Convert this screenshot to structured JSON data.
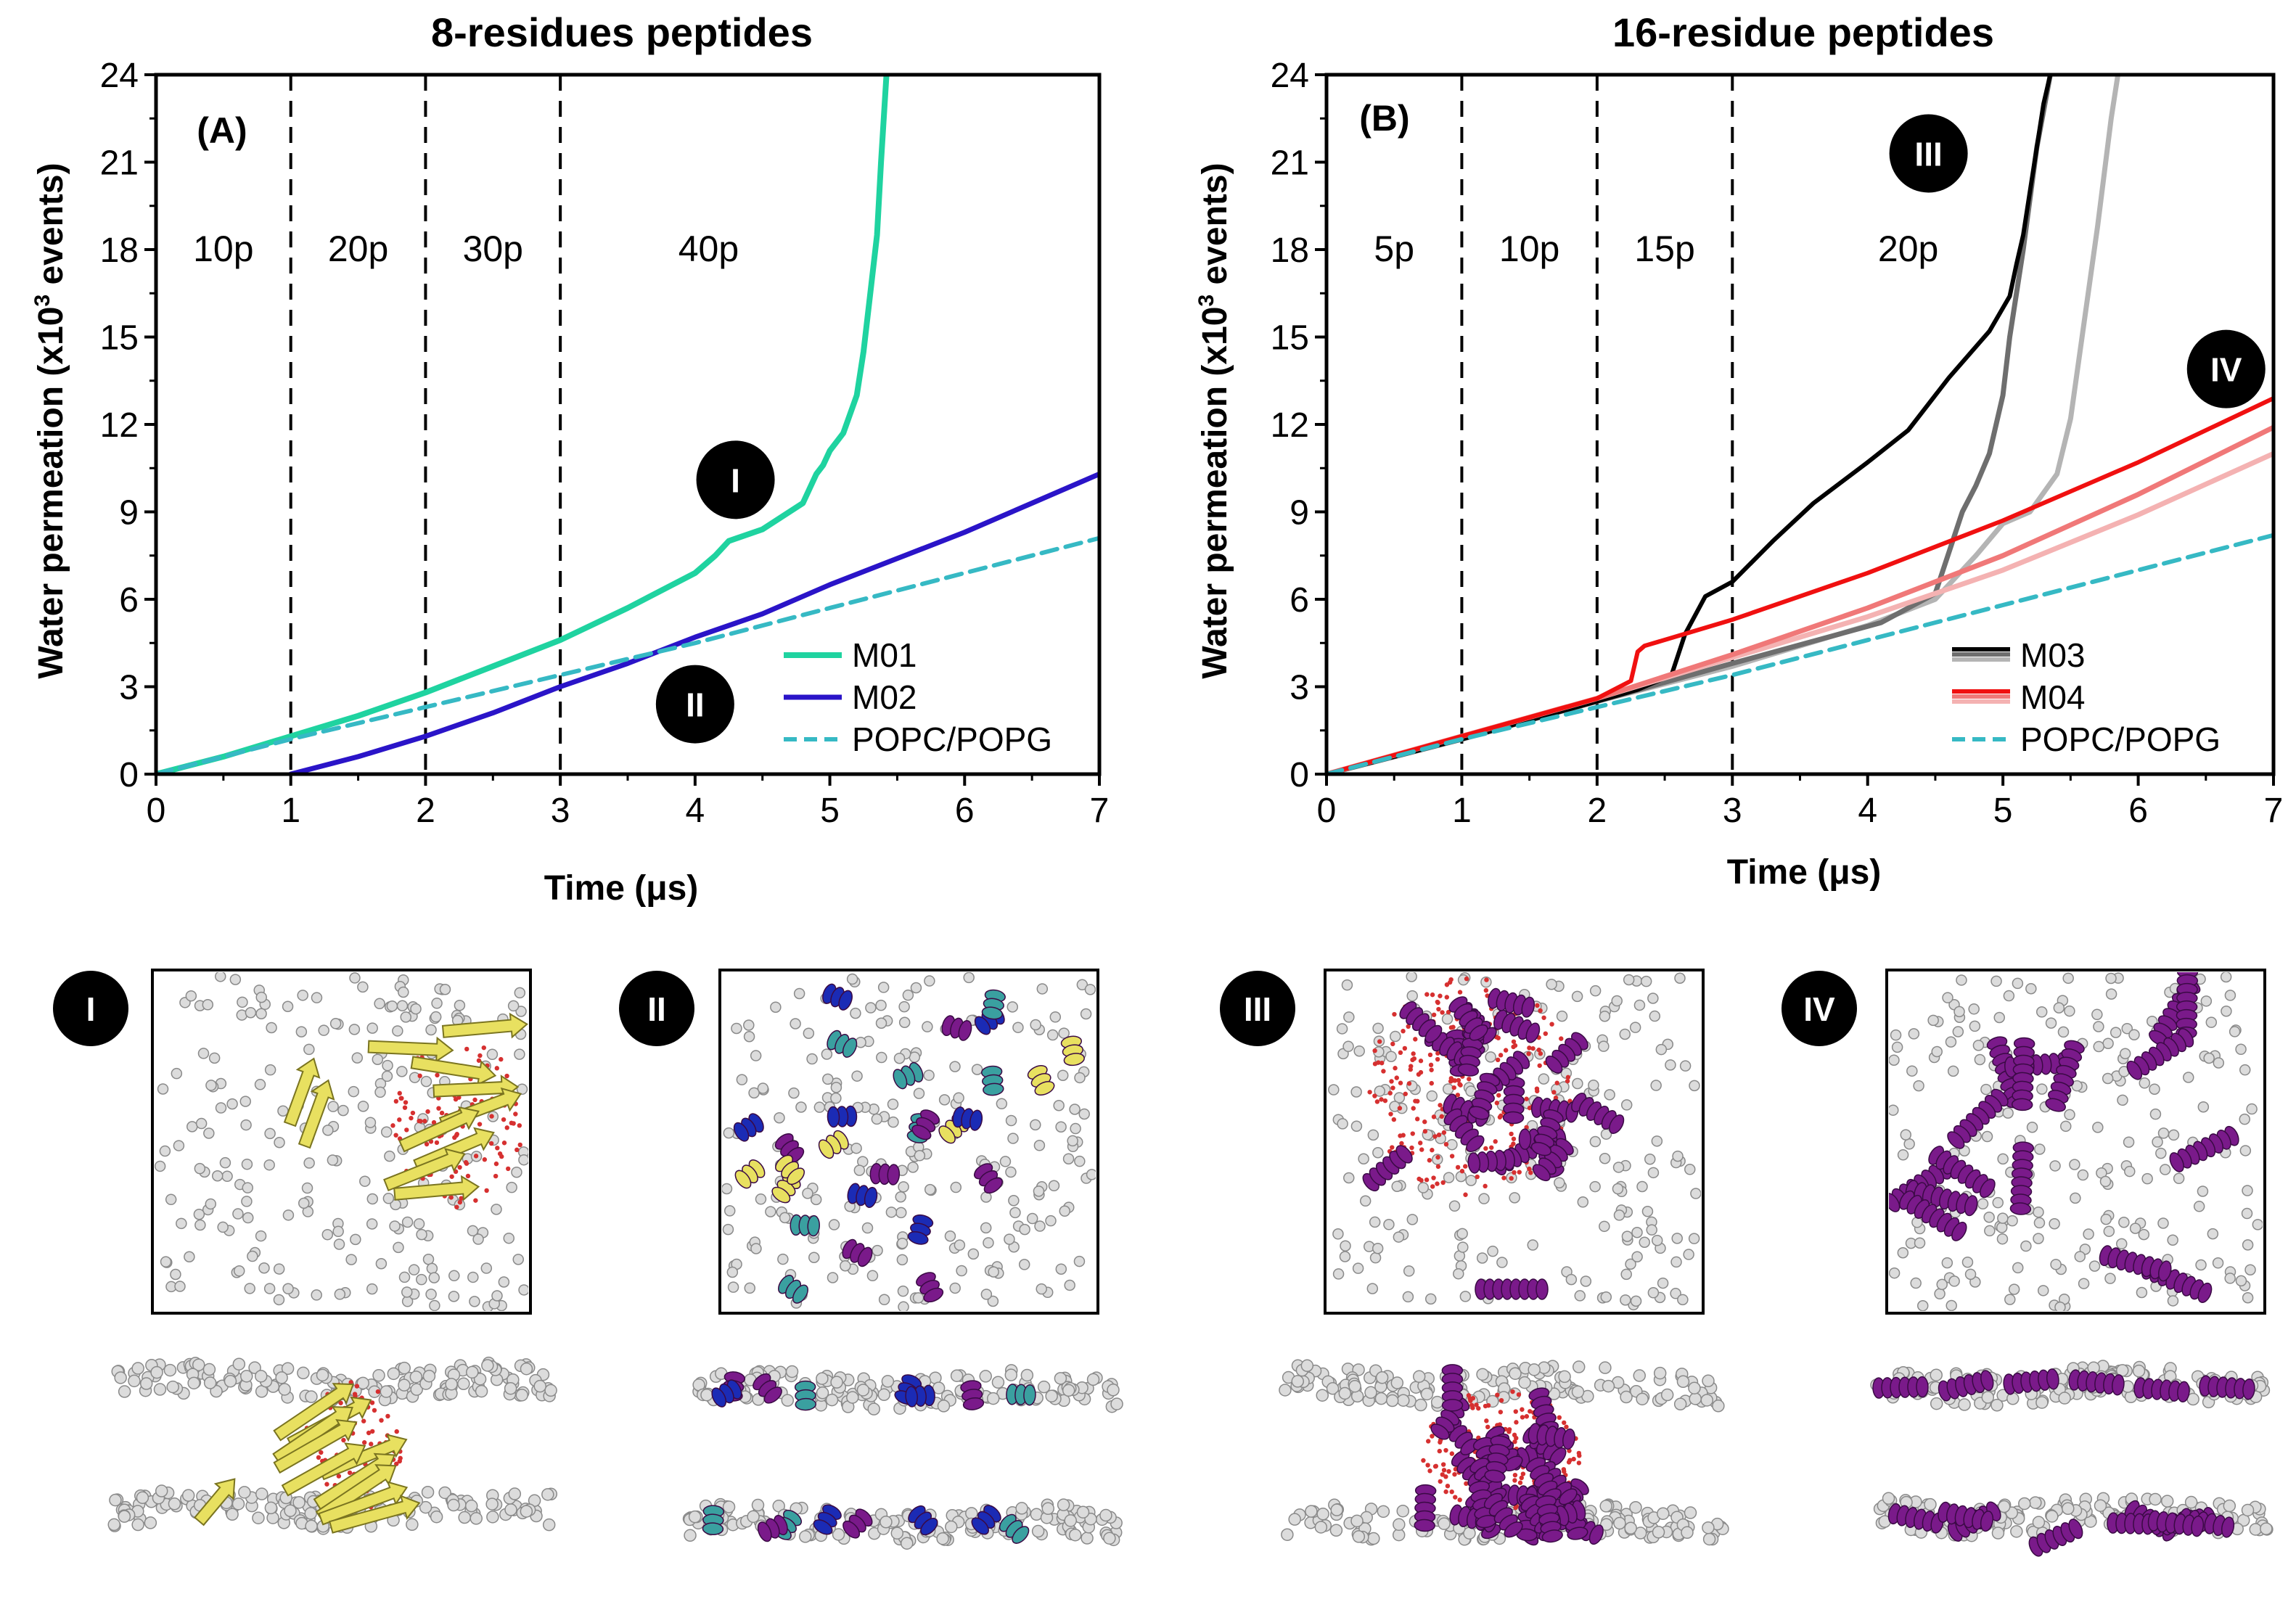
{
  "colors": {
    "M01": "#1fd3a0",
    "M02": "#2a14c8",
    "POPC": "#36b9c4",
    "M03_a": "#000000",
    "M03_b": "#6e6e6e",
    "M03_c": "#b4b4b4",
    "M04_a": "#f01010",
    "M04_b": "#f07878",
    "M04_c": "#f4b2b2",
    "yellow_peptide": "#e8e060",
    "purple_peptide": "#7a1a8a",
    "blue_peptide": "#1b2bb5",
    "lipid": "#d8d8d8"
  },
  "chart_data": [
    {
      "id": "A",
      "type": "line",
      "title": "8-residues peptides",
      "panel_label": "(A)",
      "xlabel": "Time (μs)",
      "ylabel_main": "Water permeation (x10",
      "ylabel_sup": "3",
      "ylabel_tail": " events)",
      "xlim": [
        0,
        7
      ],
      "ylim": [
        0,
        24
      ],
      "xticks": [
        "0",
        "1",
        "2",
        "3",
        "4",
        "5",
        "6",
        "7"
      ],
      "yticks": [
        "0",
        "3",
        "6",
        "9",
        "12",
        "15",
        "18",
        "21",
        "24"
      ],
      "phase_boundaries": [
        1,
        2,
        3
      ],
      "phases": [
        {
          "label": "10p",
          "x": 0.5
        },
        {
          "label": "20p",
          "x": 1.5
        },
        {
          "label": "30p",
          "x": 2.5
        },
        {
          "label": "40p",
          "x": 4.1
        }
      ],
      "annotations": [
        {
          "label": "I",
          "x": 4.3,
          "y": 10.1
        },
        {
          "label": "II",
          "x": 4.0,
          "y": 2.4
        }
      ],
      "series": [
        {
          "name": "M01",
          "color_key": "M01",
          "dashed": false,
          "width": 8,
          "x": [
            0,
            0.5,
            1.0,
            1.5,
            2.0,
            2.5,
            3.0,
            3.5,
            4.0,
            4.15,
            4.25,
            4.5,
            4.8,
            4.9,
            4.95,
            5.0,
            5.1,
            5.2,
            5.25,
            5.3,
            5.35,
            5.38,
            5.42
          ],
          "y": [
            0,
            0.6,
            1.3,
            2.0,
            2.8,
            3.7,
            4.6,
            5.7,
            6.9,
            7.5,
            8.0,
            8.4,
            9.3,
            10.3,
            10.6,
            11.1,
            11.7,
            13.0,
            14.5,
            16.5,
            18.5,
            21.0,
            24.0
          ]
        },
        {
          "name": "M02",
          "color_key": "M02",
          "dashed": false,
          "width": 7,
          "x": [
            1.0,
            1.5,
            2.0,
            2.5,
            3.0,
            3.5,
            4.0,
            4.5,
            5.0,
            5.5,
            6.0,
            6.5,
            7.0
          ],
          "y": [
            0,
            0.6,
            1.3,
            2.1,
            3.0,
            3.8,
            4.7,
            5.5,
            6.5,
            7.4,
            8.3,
            9.3,
            10.3
          ]
        },
        {
          "name": "POPC/POPG",
          "color_key": "POPC",
          "dashed": true,
          "width": 6,
          "x": [
            0,
            1,
            2,
            3,
            4,
            5,
            6,
            7
          ],
          "y": [
            0,
            1.2,
            2.3,
            3.4,
            4.5,
            5.7,
            6.9,
            8.1
          ]
        }
      ],
      "legend": [
        {
          "label": "M01",
          "color_key": "M01",
          "dashed": false,
          "width": 8
        },
        {
          "label": "M02",
          "color_key": "M02",
          "dashed": false,
          "width": 7
        },
        {
          "label": "POPC/POPG",
          "color_key": "POPC",
          "dashed": true,
          "width": 6
        }
      ],
      "legend_placement": "lower-right"
    },
    {
      "id": "B",
      "type": "line",
      "title": "16-residue peptides",
      "panel_label": "(B)",
      "xlabel": "Time (μs)",
      "ylabel_main": "Water permeation (x10",
      "ylabel_sup": "3",
      "ylabel_tail": " events)",
      "xlim": [
        0,
        7
      ],
      "ylim": [
        0,
        24
      ],
      "xticks": [
        "0",
        "1",
        "2",
        "3",
        "4",
        "5",
        "6",
        "7"
      ],
      "yticks": [
        "0",
        "3",
        "6",
        "9",
        "12",
        "15",
        "18",
        "21",
        "24"
      ],
      "phase_boundaries": [
        1,
        2,
        3
      ],
      "phases": [
        {
          "label": "5p",
          "x": 0.5
        },
        {
          "label": "10p",
          "x": 1.5
        },
        {
          "label": "15p",
          "x": 2.5
        },
        {
          "label": "20p",
          "x": 4.3
        }
      ],
      "annotations": [
        {
          "label": "III",
          "x": 4.45,
          "y": 21.3
        },
        {
          "label": "IV",
          "x": 6.65,
          "y": 13.9
        }
      ],
      "series": [
        {
          "name": "M03 run 3",
          "color_key": "M03_c",
          "dashed": false,
          "width": 7,
          "x": [
            0,
            1,
            2,
            3,
            4,
            4.5,
            4.8,
            5.0,
            5.2,
            5.4,
            5.5,
            5.6,
            5.7,
            5.8,
            5.85
          ],
          "y": [
            0,
            1.2,
            2.5,
            3.7,
            5.1,
            6.0,
            7.5,
            8.6,
            9.0,
            10.3,
            12.2,
            15.5,
            18.8,
            22.5,
            24.0
          ]
        },
        {
          "name": "M03 run 2",
          "color_key": "M03_b",
          "dashed": false,
          "width": 7,
          "x": [
            0,
            1,
            2,
            3,
            4.1,
            4.5,
            4.6,
            4.7,
            4.8,
            4.9,
            5.0,
            5.05,
            5.15,
            5.25,
            5.35
          ],
          "y": [
            0,
            1.2,
            2.5,
            3.8,
            5.2,
            6.2,
            7.6,
            9.0,
            9.9,
            11.0,
            13.0,
            15.0,
            18.0,
            21.5,
            24.0
          ]
        },
        {
          "name": "M03 run 1",
          "color_key": "M03_a",
          "dashed": false,
          "width": 6,
          "x": [
            0,
            1,
            2,
            2.3,
            2.55,
            2.65,
            2.8,
            3.0,
            3.3,
            3.6,
            4.0,
            4.3,
            4.6,
            4.9,
            5.05,
            5.1,
            5.15,
            5.2,
            5.25,
            5.3,
            5.35
          ],
          "y": [
            0,
            1.2,
            2.5,
            2.9,
            3.4,
            4.8,
            6.1,
            6.6,
            8.0,
            9.3,
            10.7,
            11.8,
            13.6,
            15.2,
            16.4,
            17.5,
            18.5,
            20.0,
            21.5,
            23.0,
            24.0
          ]
        },
        {
          "name": "M04 run 3",
          "color_key": "M04_c",
          "dashed": false,
          "width": 7,
          "x": [
            0,
            1,
            2,
            3,
            4,
            5,
            6,
            7
          ],
          "y": [
            0,
            1.3,
            2.6,
            4.0,
            5.4,
            7.0,
            8.9,
            11.0
          ]
        },
        {
          "name": "M04 run 2",
          "color_key": "M04_b",
          "dashed": false,
          "width": 7,
          "x": [
            0,
            1,
            2,
            3,
            4,
            5,
            6,
            7
          ],
          "y": [
            0,
            1.3,
            2.6,
            4.1,
            5.7,
            7.5,
            9.6,
            11.9
          ]
        },
        {
          "name": "M04 run 1",
          "color_key": "M04_a",
          "dashed": false,
          "width": 6,
          "x": [
            0,
            1,
            2,
            2.25,
            2.3,
            2.35,
            3,
            4,
            5,
            6,
            7
          ],
          "y": [
            0,
            1.3,
            2.6,
            3.2,
            4.2,
            4.4,
            5.3,
            6.9,
            8.7,
            10.7,
            12.9
          ]
        },
        {
          "name": "POPC/POPG",
          "color_key": "POPC",
          "dashed": true,
          "width": 6,
          "x": [
            0,
            1,
            2,
            3,
            4,
            5,
            6,
            7
          ],
          "y": [
            0,
            1.2,
            2.3,
            3.4,
            4.6,
            5.8,
            7.0,
            8.2
          ]
        }
      ],
      "legend": [
        {
          "label": "M03",
          "color_keys": [
            "M03_a",
            "M03_b",
            "M03_c"
          ],
          "dashed": false,
          "width": 6
        },
        {
          "label": "M04",
          "color_keys": [
            "M04_a",
            "M04_b",
            "M04_c"
          ],
          "dashed": false,
          "width": 6
        },
        {
          "label": "POPC/POPG",
          "color_key": "POPC",
          "dashed": true,
          "width": 6
        }
      ],
      "legend_placement": "lower-right"
    }
  ],
  "snapshots": [
    {
      "badge": "I",
      "peptide_color_key": "yellow_peptide",
      "style": "sheet"
    },
    {
      "badge": "II",
      "peptide_color_key": "blue_peptide",
      "style": "scattered"
    },
    {
      "badge": "III",
      "peptide_color_key": "purple_peptide",
      "style": "cluster"
    },
    {
      "badge": "IV",
      "peptide_color_key": "purple_peptide",
      "style": "helix"
    }
  ]
}
